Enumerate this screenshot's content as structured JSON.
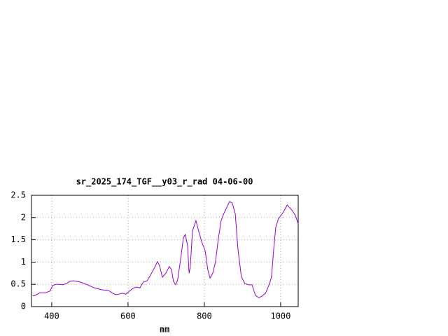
{
  "chart_data": {
    "type": "line",
    "title": "sr_2025_174_TGF__y03_r_rad 04-06-00",
    "xlabel": "nm",
    "x": [
      350,
      356,
      369,
      383,
      396,
      402,
      411,
      420,
      429,
      439,
      448,
      457,
      475,
      494,
      512,
      530,
      549,
      558,
      567,
      576,
      585,
      594,
      604,
      613,
      622,
      631,
      640,
      650,
      659,
      668,
      677,
      683,
      690,
      699,
      708,
      714,
      719,
      725,
      730,
      738,
      745,
      750,
      756,
      760,
      763,
      769,
      778,
      785,
      793,
      802,
      809,
      815,
      822,
      829,
      837,
      844,
      851,
      859,
      866,
      873,
      881,
      888,
      897,
      906,
      916,
      925,
      934,
      943,
      952,
      961,
      971,
      976,
      982,
      987,
      994,
      1007,
      1017,
      1024,
      1031,
      1039,
      1046
    ],
    "series": [
      {
        "color": "#9400d3",
        "values": [
          0.24,
          0.25,
          0.31,
          0.31,
          0.35,
          0.47,
          0.5,
          0.5,
          0.49,
          0.52,
          0.57,
          0.58,
          0.55,
          0.49,
          0.42,
          0.38,
          0.36,
          0.31,
          0.27,
          0.28,
          0.3,
          0.28,
          0.35,
          0.41,
          0.44,
          0.42,
          0.55,
          0.58,
          0.71,
          0.85,
          1.01,
          0.91,
          0.66,
          0.75,
          0.9,
          0.83,
          0.57,
          0.49,
          0.6,
          1.07,
          1.54,
          1.62,
          1.38,
          0.75,
          0.88,
          1.7,
          1.93,
          1.7,
          1.46,
          1.26,
          0.83,
          0.64,
          0.75,
          0.99,
          1.54,
          1.93,
          2.09,
          2.23,
          2.36,
          2.33,
          2.09,
          1.3,
          0.67,
          0.52,
          0.49,
          0.49,
          0.25,
          0.2,
          0.24,
          0.31,
          0.52,
          0.67,
          1.3,
          1.77,
          1.97,
          2.12,
          2.28,
          2.22,
          2.15,
          2.04,
          1.86
        ]
      }
    ],
    "xlim": [
      347,
      1046
    ],
    "ylim": [
      0,
      2.5
    ],
    "xticks": [
      400,
      600,
      800,
      1000
    ],
    "yticks": [
      0,
      0.5,
      1,
      1.5,
      2,
      2.5
    ],
    "grid": true
  }
}
